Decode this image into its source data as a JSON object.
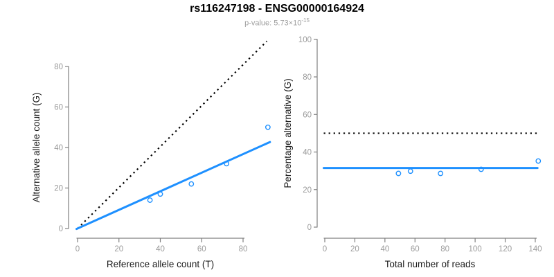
{
  "header": {
    "title": "rs116247198 - ENSG00000164924",
    "subtitle_text": "p-value: 5.73×10",
    "subtitle_sup": "-15"
  },
  "colors": {
    "accent_blue": "#1E90FF",
    "dotted_black": "#000000",
    "axis_line": "#808080",
    "tick_label": "#9a9a9a",
    "axis_title": "#1a1a1a"
  },
  "chart_data": [
    {
      "type": "scatter",
      "name": "allele-counts",
      "xlabel": "Reference allele count (T)",
      "ylabel": "Alternative allele count (G)",
      "xlim": [
        0,
        95
      ],
      "ylim": [
        0,
        93
      ],
      "x_ticks": [
        0,
        20,
        40,
        60,
        80
      ],
      "y_ticks": [
        0,
        20,
        40,
        60,
        80
      ],
      "grid": false,
      "legend": null,
      "points": [
        [
          35,
          14
        ],
        [
          40,
          17
        ],
        [
          55,
          22
        ],
        [
          72,
          32
        ],
        [
          92,
          50
        ]
      ],
      "lines": [
        {
          "name": "identity-line",
          "style": "dotted",
          "color": "#000000",
          "width": 2.2,
          "from": [
            0,
            0
          ],
          "to": [
            91.5,
            92.5
          ]
        },
        {
          "name": "fit-line",
          "style": "solid",
          "color": "#1E90FF",
          "width": 3,
          "from": [
            -0.5,
            -0.2
          ],
          "to": [
            93,
            42.7
          ]
        }
      ]
    },
    {
      "type": "scatter",
      "name": "percentage-vs-coverage",
      "xlabel": "Total number of reads",
      "ylabel": "Percentage alternative (G)",
      "xlim": [
        0,
        145
      ],
      "ylim": [
        0,
        100
      ],
      "x_ticks": [
        0,
        20,
        40,
        60,
        80,
        100,
        120,
        140
      ],
      "y_ticks": [
        0,
        20,
        40,
        60,
        80,
        100
      ],
      "grid": false,
      "legend": null,
      "points": [
        [
          49,
          28.6
        ],
        [
          57,
          29.8
        ],
        [
          77,
          28.6
        ],
        [
          104,
          30.8
        ],
        [
          142,
          35.2
        ]
      ],
      "lines": [
        {
          "name": "expected-50-percent-line",
          "style": "dotted",
          "color": "#000000",
          "width": 2,
          "from": [
            -0.7,
            50
          ],
          "to": [
            141.5,
            50
          ]
        },
        {
          "name": "mean-percentage-line",
          "style": "solid",
          "color": "#1E90FF",
          "width": 3,
          "from": [
            -0.7,
            31.5
          ],
          "to": [
            141.5,
            31.5
          ]
        }
      ]
    }
  ]
}
